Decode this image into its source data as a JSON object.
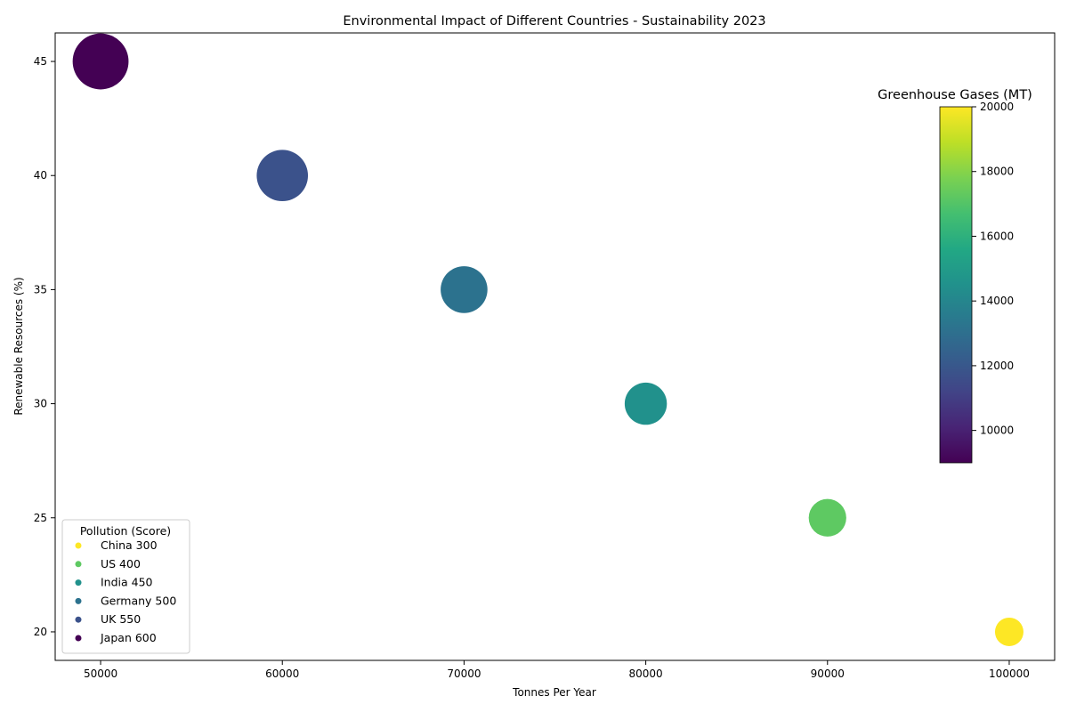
{
  "chart_data": {
    "type": "scatter",
    "title": "Environmental Impact of Different Countries - Sustainability 2023",
    "xlabel": "Tonnes Per Year",
    "ylabel": "Renewable Resources (%)",
    "xlim": [
      47500,
      102500
    ],
    "ylim": [
      18750,
      46250
    ],
    "ylim_units": "percent",
    "y_range": [
      18.75,
      46.25
    ],
    "x_ticks": [
      50000,
      60000,
      70000,
      80000,
      90000,
      100000
    ],
    "y_ticks": [
      20,
      25,
      30,
      35,
      40,
      45
    ],
    "points": [
      {
        "country": "China",
        "x": 100000,
        "y": 20,
        "pollution": 300,
        "ghg": 20000,
        "color": "#fde725"
      },
      {
        "country": "US",
        "x": 90000,
        "y": 25,
        "pollution": 400,
        "ghg": 17000,
        "color": "#5ec962"
      },
      {
        "country": "India",
        "x": 80000,
        "y": 30,
        "pollution": 450,
        "ghg": 15000,
        "color": "#21918c"
      },
      {
        "country": "Germany",
        "x": 70000,
        "y": 35,
        "pollution": 500,
        "ghg": 13000,
        "color": "#2c728e"
      },
      {
        "country": "UK",
        "x": 60000,
        "y": 40,
        "pollution": 550,
        "ghg": 11000,
        "color": "#3b528b"
      },
      {
        "country": "Japan",
        "x": 50000,
        "y": 45,
        "pollution": 600,
        "ghg": 9000,
        "color": "#440154"
      }
    ],
    "legend": {
      "title": "Pollution (Score)",
      "placement": "lower-left",
      "entries": [
        "China 300",
        "US 400",
        "India 450",
        "Germany 500",
        "UK 550",
        "Japan 600"
      ]
    },
    "colorbar": {
      "title": "Greenhouse Gases (MT)",
      "min": 9000,
      "max": 20000,
      "ticks": [
        10000,
        12000,
        14000,
        16000,
        18000,
        20000
      ],
      "colormap": "viridis"
    },
    "grid": false
  }
}
